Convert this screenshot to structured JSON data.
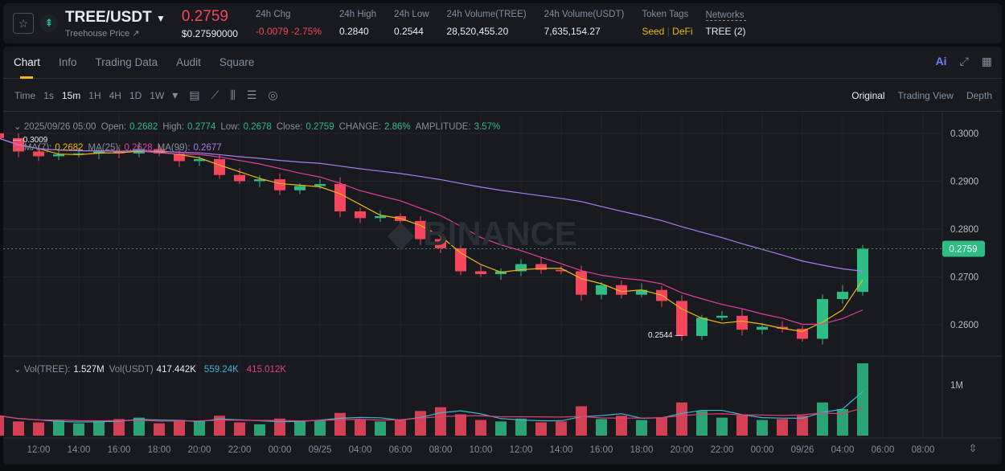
{
  "header": {
    "pair": "TREE/USDT",
    "subtitle": "Treehouse Price ↗",
    "last_price": "0.2759",
    "usd_price": "$0.27590000",
    "stats": [
      {
        "label": "24h Chg",
        "value": "-0.0079 -2.75%",
        "color": "#f6465d"
      },
      {
        "label": "24h High",
        "value": "0.2840"
      },
      {
        "label": "24h Low",
        "value": "0.2544"
      },
      {
        "label": "24h Volume(TREE)",
        "value": "28,520,455.20"
      },
      {
        "label": "24h Volume(USDT)",
        "value": "7,635,154.27"
      }
    ],
    "token_tags_label": "Token Tags",
    "tag1": "Seed",
    "tag_sep": "|",
    "tag2": "DeFi",
    "networks_label": "Networks",
    "networks_value": "TREE (2)"
  },
  "tabs": [
    "Chart",
    "Info",
    "Trading Data",
    "Audit",
    "Square"
  ],
  "toolbar": {
    "intervals": [
      "Time",
      "1s",
      "15m",
      "1H",
      "4H",
      "1D",
      "1W"
    ],
    "active": "15m",
    "views": [
      "Original",
      "Trading View",
      "Depth"
    ],
    "ai_label": "Ai"
  },
  "legend": {
    "date": "2025/09/26 05:00",
    "open_l": "Open:",
    "open": "0.2682",
    "high_l": "High:",
    "high": "0.2774",
    "low_l": "Low:",
    "low": "0.2678",
    "close_l": "Close:",
    "close": "0.2759",
    "change_l": "CHANGE:",
    "change": "2.86%",
    "amp_l": "AMPLITUDE:",
    "amp": "3.57%",
    "ma7_l": "MA(7):",
    "ma7": "0.2682",
    "ma25_l": "MA(25):",
    "ma25": "0.2628",
    "ma99_l": "MA(99):",
    "ma99": "0.2677",
    "vol_l": "Vol(TREE):",
    "vol": "1.527M",
    "volu_l": "Vol(USDT)",
    "volu": "417.442K",
    "vma1": "559.24K",
    "vma2": "415.012K"
  },
  "colors": {
    "up": "#2ebd85",
    "down": "#f6465d",
    "ma7": "#f0b90b",
    "ma25": "#e040a0",
    "ma99": "#a77ef0",
    "accent": "#f0b90b"
  },
  "chart_data": {
    "type": "candlestick",
    "interval": "1H",
    "ylim": [
      0.254,
      0.304
    ],
    "y_ticks": [
      "0.3000",
      "0.2900",
      "0.2800",
      "0.2700",
      "0.2600"
    ],
    "x_ticks": [
      "12:00",
      "14:00",
      "16:00",
      "18:00",
      "20:00",
      "22:00",
      "00:00",
      "09/25",
      "04:00",
      "06:00",
      "08:00",
      "10:00",
      "12:00",
      "14:00",
      "16:00",
      "18:00",
      "20:00",
      "22:00",
      "00:00",
      "09/26",
      "04:00",
      "06:00",
      "08:00"
    ],
    "high_label": "0.3009",
    "low_label": "0.2544",
    "current_price": "0.2759",
    "vol_tick": "1M",
    "close": [
      0.299,
      0.2962,
      0.2952,
      0.2956,
      0.2958,
      0.2962,
      0.2958,
      0.2967,
      0.2958,
      0.2942,
      0.2946,
      0.2913,
      0.29,
      0.2904,
      0.2881,
      0.289,
      0.2894,
      0.2837,
      0.2823,
      0.2827,
      0.2817,
      0.2779,
      0.276,
      0.2712,
      0.2706,
      0.2712,
      0.2727,
      0.2715,
      0.2712,
      0.2663,
      0.2683,
      0.2663,
      0.2673,
      0.265,
      0.2577,
      0.2615,
      0.2619,
      0.259,
      0.2596,
      0.2592,
      0.2571,
      0.2654,
      0.2669,
      0.2759
    ],
    "open0": 0.3,
    "volume_k": [
      420,
      300,
      280,
      320,
      260,
      300,
      350,
      380,
      260,
      330,
      300,
      420,
      280,
      240,
      360,
      300,
      320,
      480,
      350,
      300,
      330,
      520,
      600,
      450,
      330,
      300,
      360,
      280,
      300,
      620,
      350,
      420,
      330,
      380,
      700,
      520,
      380,
      430,
      330,
      350,
      420,
      700,
      560,
      1527
    ]
  }
}
